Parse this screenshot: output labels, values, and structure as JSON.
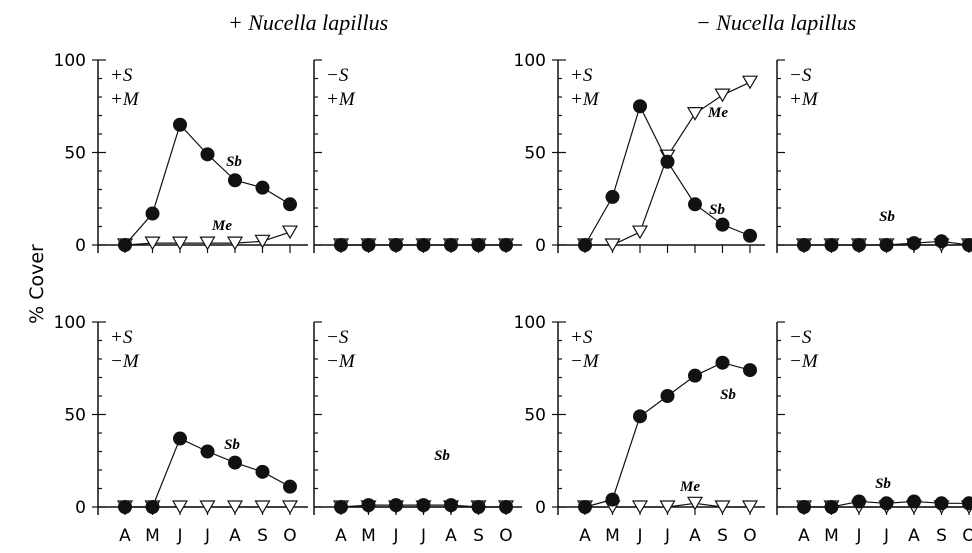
{
  "chart_data": {
    "type": "line",
    "group_titles": [
      "+ Nucella lapillus",
      "− Nucella lapillus"
    ],
    "ylabel": "% Cover",
    "x": [
      "A",
      "M",
      "J",
      "J",
      "A",
      "S",
      "O"
    ],
    "ylim": [
      0,
      100
    ],
    "yticks": [
      "0",
      "50",
      "100"
    ],
    "grid": false,
    "panels": [
      {
        "group": "+ Nucella lapillus",
        "treatment": [
          "+S",
          "+M"
        ],
        "series": [
          {
            "name": "Sb",
            "marker": "filled-circle",
            "values": [
              0,
              17,
              65,
              49,
              35,
              31,
              22
            ]
          },
          {
            "name": "Me",
            "marker": "open-triangle",
            "values": [
              0,
              1,
              1,
              1,
              1,
              2,
              7
            ]
          }
        ]
      },
      {
        "group": "+ Nucella lapillus",
        "treatment": [
          "−S",
          "+M"
        ],
        "series": [
          {
            "marker": "filled-circle",
            "values": [
              0,
              0,
              0,
              0,
              0,
              0,
              0
            ]
          },
          {
            "marker": "open-triangle",
            "values": [
              0,
              0,
              0,
              0,
              0,
              0,
              0
            ]
          }
        ]
      },
      {
        "group": "− Nucella lapillus",
        "treatment": [
          "+S",
          "+M"
        ],
        "series": [
          {
            "name": "Sb",
            "marker": "filled-circle",
            "values": [
              0,
              26,
              75,
              45,
              22,
              11,
              5
            ]
          },
          {
            "name": "Me",
            "marker": "open-triangle",
            "values": [
              0,
              0,
              7,
              48,
              71,
              81,
              88
            ]
          }
        ]
      },
      {
        "group": "− Nucella lapillus",
        "treatment": [
          "−S",
          "+M"
        ],
        "series": [
          {
            "name": "Sb",
            "marker": "filled-circle",
            "values": [
              0,
              0,
              0,
              0,
              1,
              2,
              0
            ]
          },
          {
            "marker": "open-triangle",
            "values": [
              0,
              0,
              0,
              0,
              0,
              0,
              0
            ]
          }
        ]
      },
      {
        "group": "+ Nucella lapillus",
        "treatment": [
          "+S",
          "−M"
        ],
        "series": [
          {
            "name": "Sb",
            "marker": "filled-circle",
            "values": [
              0,
              0,
              37,
              30,
              24,
              19,
              11
            ]
          },
          {
            "marker": "open-triangle",
            "values": [
              0,
              0,
              0,
              0,
              0,
              0,
              0
            ]
          }
        ]
      },
      {
        "group": "+ Nucella lapillus",
        "treatment": [
          "−S",
          "−M"
        ],
        "series": [
          {
            "name": "Sb",
            "marker": "filled-circle",
            "values": [
              0,
              1,
              1,
              1,
              1,
              0,
              0
            ]
          },
          {
            "marker": "open-triangle",
            "values": [
              0,
              0,
              0,
              0,
              0,
              0,
              0
            ]
          }
        ]
      },
      {
        "group": "− Nucella lapillus",
        "treatment": [
          "+S",
          "−M"
        ],
        "series": [
          {
            "name": "Sb",
            "marker": "filled-circle",
            "values": [
              0,
              4,
              49,
              60,
              71,
              78,
              74
            ]
          },
          {
            "name": "Me",
            "marker": "open-triangle",
            "values": [
              0,
              0,
              0,
              0,
              2,
              0,
              0
            ]
          }
        ]
      },
      {
        "group": "− Nucella lapillus",
        "treatment": [
          "−S",
          "−M"
        ],
        "series": [
          {
            "name": "Sb",
            "marker": "filled-circle",
            "values": [
              0,
              0,
              3,
              2,
              3,
              2,
              2
            ]
          },
          {
            "marker": "open-triangle",
            "values": [
              0,
              0,
              0,
              0,
              0,
              0,
              0
            ]
          }
        ]
      }
    ]
  }
}
